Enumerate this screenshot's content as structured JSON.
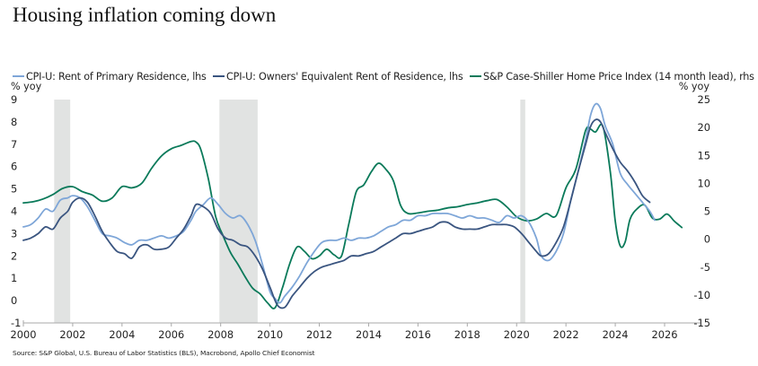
{
  "chart_data": {
    "type": "line",
    "title": "Housing inflation coming down",
    "xlabel": "",
    "ylabel_left": "% yoy",
    "ylabel_right": "% yoy",
    "xlim": [
      2000,
      2027.3
    ],
    "ylim_left": [
      -1,
      9
    ],
    "ylim_right": [
      -15,
      25
    ],
    "x_ticks": [
      2000,
      2002,
      2004,
      2006,
      2008,
      2010,
      2012,
      2014,
      2016,
      2018,
      2020,
      2022,
      2024,
      2026
    ],
    "y_ticks_left": [
      -1,
      0,
      1,
      2,
      3,
      4,
      5,
      6,
      7,
      8,
      9
    ],
    "y_ticks_right": [
      -15,
      -10,
      -5,
      0,
      5,
      10,
      15,
      20,
      25
    ],
    "legend_position": "top",
    "grid": false,
    "recessions": [
      [
        2001.25,
        2001.9
      ],
      [
        2007.95,
        2009.5
      ],
      [
        2020.15,
        2020.35
      ]
    ],
    "series": [
      {
        "name": "CPI-U: Rent of Primary Residence, lhs",
        "axis": "left",
        "color": "#7ea6d8",
        "x": [
          2000.0,
          2000.3,
          2000.6,
          2000.9,
          2001.2,
          2001.5,
          2001.8,
          2002.0,
          2002.3,
          2002.6,
          2002.9,
          2003.2,
          2003.5,
          2003.8,
          2004.1,
          2004.4,
          2004.7,
          2005.0,
          2005.3,
          2005.6,
          2005.9,
          2006.2,
          2006.5,
          2006.8,
          2007.0,
          2007.3,
          2007.6,
          2007.9,
          2008.2,
          2008.5,
          2008.8,
          2009.1,
          2009.4,
          2009.7,
          2010.0,
          2010.2,
          2010.4,
          2010.6,
          2010.9,
          2011.2,
          2011.5,
          2011.8,
          2012.1,
          2012.4,
          2012.7,
          2013.0,
          2013.3,
          2013.6,
          2013.9,
          2014.2,
          2014.5,
          2014.8,
          2015.1,
          2015.4,
          2015.7,
          2016.0,
          2016.3,
          2016.6,
          2016.9,
          2017.2,
          2017.5,
          2017.8,
          2018.1,
          2018.4,
          2018.7,
          2019.0,
          2019.3,
          2019.6,
          2019.9,
          2020.2,
          2020.5,
          2020.8,
          2021.0,
          2021.3,
          2021.6,
          2021.9,
          2022.2,
          2022.5,
          2022.8,
          2023.0,
          2023.2,
          2023.4,
          2023.6,
          2023.9,
          2024.2,
          2024.5,
          2024.8,
          2025.1,
          2025.4,
          2025.6
        ],
        "values": [
          3.3,
          3.4,
          3.7,
          4.1,
          4.0,
          4.5,
          4.6,
          4.7,
          4.6,
          4.2,
          3.6,
          3.0,
          2.9,
          2.8,
          2.6,
          2.5,
          2.7,
          2.7,
          2.8,
          2.9,
          2.8,
          2.9,
          3.1,
          3.6,
          4.0,
          4.3,
          4.6,
          4.3,
          3.9,
          3.7,
          3.8,
          3.4,
          2.7,
          1.6,
          0.4,
          0.1,
          -0.1,
          0.2,
          0.6,
          1.1,
          1.7,
          2.2,
          2.6,
          2.7,
          2.7,
          2.8,
          2.7,
          2.8,
          2.8,
          2.9,
          3.1,
          3.3,
          3.4,
          3.6,
          3.6,
          3.8,
          3.8,
          3.9,
          3.9,
          3.9,
          3.8,
          3.7,
          3.8,
          3.7,
          3.7,
          3.6,
          3.5,
          3.8,
          3.7,
          3.8,
          3.5,
          2.8,
          2.0,
          1.8,
          2.2,
          3.0,
          4.5,
          5.8,
          7.2,
          8.3,
          8.8,
          8.6,
          7.8,
          7.0,
          5.7,
          5.2,
          4.8,
          4.4,
          4.0,
          3.6
        ]
      },
      {
        "name": "CPI-U: Owners' Equivalent Rent of Residence, lhs",
        "axis": "left",
        "color": "#3a5580",
        "x": [
          2000.0,
          2000.3,
          2000.6,
          2000.9,
          2001.2,
          2001.5,
          2001.8,
          2002.0,
          2002.3,
          2002.6,
          2002.9,
          2003.2,
          2003.5,
          2003.8,
          2004.1,
          2004.4,
          2004.7,
          2005.0,
          2005.3,
          2005.6,
          2005.9,
          2006.2,
          2006.5,
          2006.8,
          2007.0,
          2007.3,
          2007.6,
          2007.9,
          2008.2,
          2008.5,
          2008.8,
          2009.1,
          2009.4,
          2009.7,
          2010.0,
          2010.3,
          2010.6,
          2010.9,
          2011.2,
          2011.5,
          2011.8,
          2012.1,
          2012.4,
          2012.7,
          2013.0,
          2013.3,
          2013.6,
          2013.9,
          2014.2,
          2014.5,
          2014.8,
          2015.1,
          2015.4,
          2015.7,
          2016.0,
          2016.3,
          2016.6,
          2016.9,
          2017.2,
          2017.5,
          2017.8,
          2018.1,
          2018.4,
          2018.7,
          2019.0,
          2019.3,
          2019.6,
          2019.9,
          2020.2,
          2020.5,
          2020.8,
          2021.0,
          2021.3,
          2021.6,
          2021.9,
          2022.2,
          2022.5,
          2022.8,
          2023.0,
          2023.2,
          2023.4,
          2023.6,
          2023.9,
          2024.2,
          2024.5,
          2024.8,
          2025.1,
          2025.4
        ],
        "values": [
          2.7,
          2.8,
          3.0,
          3.3,
          3.2,
          3.7,
          4.0,
          4.4,
          4.6,
          4.4,
          3.8,
          3.1,
          2.6,
          2.2,
          2.1,
          1.9,
          2.4,
          2.5,
          2.3,
          2.3,
          2.4,
          2.8,
          3.2,
          3.8,
          4.3,
          4.2,
          3.9,
          3.2,
          2.8,
          2.7,
          2.5,
          2.4,
          2.0,
          1.4,
          0.6,
          -0.2,
          -0.3,
          0.2,
          0.6,
          1.0,
          1.3,
          1.5,
          1.6,
          1.7,
          1.8,
          2.0,
          2.0,
          2.1,
          2.2,
          2.4,
          2.6,
          2.8,
          3.0,
          3.0,
          3.1,
          3.2,
          3.3,
          3.5,
          3.5,
          3.3,
          3.2,
          3.2,
          3.2,
          3.3,
          3.4,
          3.4,
          3.4,
          3.3,
          3.0,
          2.6,
          2.2,
          2.0,
          2.1,
          2.6,
          3.3,
          4.5,
          5.8,
          7.0,
          7.8,
          8.1,
          8.0,
          7.5,
          6.8,
          6.2,
          5.8,
          5.3,
          4.7,
          4.4
        ]
      },
      {
        "name": "S&P Case-Shiller Home Price Index (14 month lead), rhs",
        "axis": "right",
        "color": "#0a7a5a",
        "x": [
          2000.0,
          2000.4,
          2000.8,
          2001.2,
          2001.6,
          2002.0,
          2002.4,
          2002.8,
          2003.2,
          2003.6,
          2004.0,
          2004.4,
          2004.8,
          2005.2,
          2005.6,
          2006.0,
          2006.4,
          2006.8,
          2007.0,
          2007.2,
          2007.5,
          2007.8,
          2008.1,
          2008.4,
          2008.7,
          2009.0,
          2009.3,
          2009.6,
          2009.9,
          2010.2,
          2010.5,
          2010.8,
          2011.1,
          2011.4,
          2011.7,
          2012.0,
          2012.3,
          2012.6,
          2012.9,
          2013.2,
          2013.5,
          2013.8,
          2014.1,
          2014.4,
          2014.7,
          2015.0,
          2015.3,
          2015.6,
          2016.0,
          2016.4,
          2016.8,
          2017.2,
          2017.6,
          2018.0,
          2018.4,
          2018.8,
          2019.2,
          2019.6,
          2020.0,
          2020.4,
          2020.8,
          2021.2,
          2021.6,
          2022.0,
          2022.4,
          2022.8,
          2023.0,
          2023.2,
          2023.5,
          2023.8,
          2024.0,
          2024.2,
          2024.4,
          2024.6,
          2024.9,
          2025.2,
          2025.5,
          2025.8,
          2026.1,
          2026.4,
          2026.7
        ],
        "values": [
          6.5,
          6.7,
          7.2,
          8.0,
          9.1,
          9.4,
          8.5,
          7.9,
          6.8,
          7.4,
          9.4,
          9.2,
          10.0,
          12.7,
          14.9,
          16.2,
          16.8,
          17.5,
          17.4,
          16.0,
          10.8,
          4.0,
          0.6,
          -2.4,
          -4.5,
          -6.8,
          -8.8,
          -9.8,
          -11.4,
          -12.3,
          -8.8,
          -4.4,
          -1.4,
          -2.2,
          -3.5,
          -3.0,
          -1.8,
          -2.8,
          -3.0,
          2.8,
          8.5,
          9.7,
          12.0,
          13.6,
          12.5,
          10.5,
          6.0,
          4.6,
          4.7,
          5.0,
          5.2,
          5.6,
          5.8,
          6.2,
          6.5,
          6.9,
          7.1,
          5.8,
          4.0,
          3.3,
          3.6,
          4.6,
          4.2,
          9.2,
          12.5,
          19.5,
          19.7,
          19.2,
          20.2,
          12.0,
          3.2,
          -1.2,
          -0.5,
          3.6,
          5.5,
          6.1,
          3.8,
          3.6,
          4.5,
          3.2,
          2.1
        ]
      }
    ]
  },
  "legend": [
    {
      "label": "CPI-U: Rent of Primary Residence, lhs",
      "color": "#7ea6d8"
    },
    {
      "label": "CPI-U: Owners' Equivalent Rent of Residence, lhs",
      "color": "#3a5580"
    },
    {
      "label": "S&P Case-Shiller Home Price Index (14 month lead), rhs",
      "color": "#0a7a5a"
    }
  ],
  "axis_units": {
    "left": "% yoy",
    "right": "% yoy"
  },
  "recession_color": "#e1e3e2",
  "source": "Source: S&P Global, U.S. Bureau of Labor Statistics (BLS), Macrobond, Apollo Chief Economist"
}
